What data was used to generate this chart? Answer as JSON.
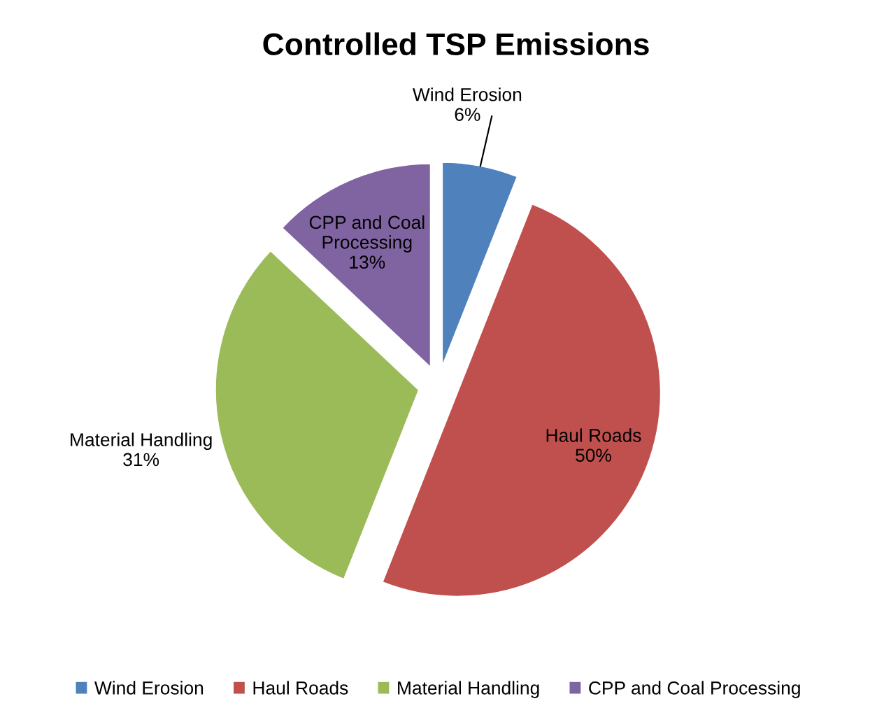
{
  "chart_data": {
    "type": "pie",
    "title": "Controlled TSP Emissions",
    "categories": [
      "Wind Erosion",
      "Haul Roads",
      "Material Handling",
      "CPP and Coal Processing"
    ],
    "values": [
      6,
      50,
      31,
      13
    ],
    "colors": [
      "#4f81bd",
      "#c0504d",
      "#9bbb59",
      "#8064a2"
    ],
    "value_labels": [
      "6%",
      "50%",
      "31%",
      "13%"
    ],
    "legend": "bottom"
  }
}
